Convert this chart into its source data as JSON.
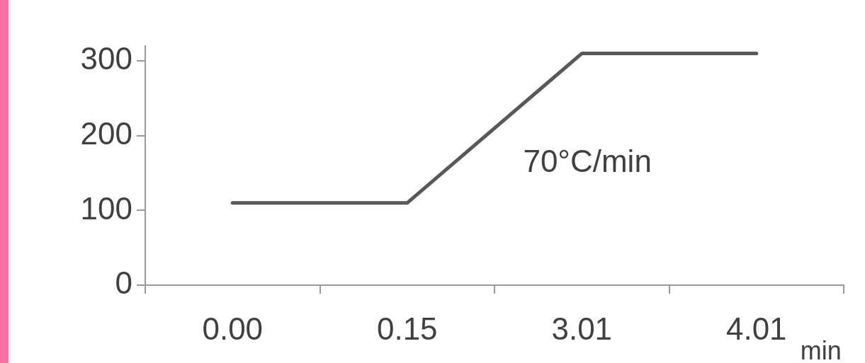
{
  "chart_data": {
    "type": "line",
    "xlabel": "min",
    "categories": [
      "0.00",
      "0.15",
      "3.01",
      "4.01"
    ],
    "series": [
      {
        "color": "#595959",
        "values": [
          110,
          110,
          310,
          310
        ]
      }
    ],
    "ylim": [
      0,
      320
    ],
    "yticks": [
      0,
      100,
      200,
      300
    ],
    "marker": "none",
    "annotations": [
      "70°C/min"
    ]
  }
}
